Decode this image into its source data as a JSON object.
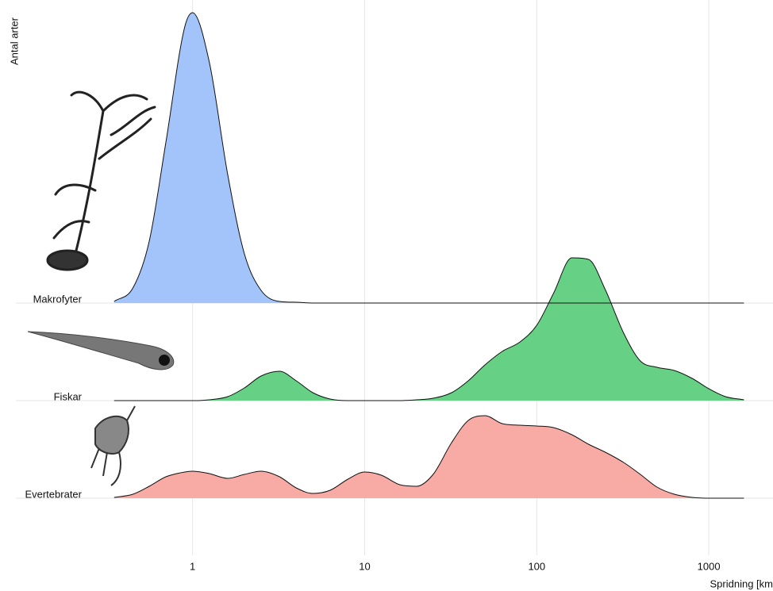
{
  "chart_data": {
    "type": "ridgeline",
    "y_label": "Antal arter",
    "x_label": "Spridning [km",
    "log_x": true,
    "grid": true,
    "xlim": [
      0.094,
      2360
    ],
    "xticks": [
      1,
      10,
      100,
      1000
    ],
    "x": [
      0.35,
      0.45,
      0.56,
      0.7,
      0.9,
      1,
      1.25,
      1.6,
      2,
      2.5,
      3.2,
      4,
      5,
      6.3,
      8,
      10,
      12.5,
      16,
      20,
      25,
      32,
      40,
      50,
      63,
      80,
      100,
      125,
      160,
      200,
      250,
      320,
      400,
      500,
      630,
      800,
      1000,
      1250,
      1600
    ],
    "series": [
      {
        "name": "Makrofyter",
        "color": "#a3c4fb",
        "values": [
          0.02,
          0.19,
          0.78,
          2.03,
          3.48,
          3.66,
          3.04,
          1.62,
          0.62,
          0.16,
          0.02,
          0.01,
          0,
          0,
          0,
          0,
          0,
          0,
          0,
          0,
          0,
          0,
          0,
          0,
          0,
          0,
          0,
          0,
          0,
          0,
          0,
          0,
          0,
          0,
          0,
          0,
          0,
          0
        ]
      },
      {
        "name": "Fiskar",
        "color": "#66d184",
        "values": [
          0,
          0,
          0,
          0,
          0,
          0,
          0.01,
          0.05,
          0.16,
          0.31,
          0.37,
          0.25,
          0.1,
          0.02,
          0,
          0,
          0,
          0,
          0.01,
          0.03,
          0.1,
          0.25,
          0.45,
          0.62,
          0.74,
          0.95,
          1.35,
          1.8,
          1.78,
          1.4,
          0.85,
          0.5,
          0.42,
          0.38,
          0.28,
          0.15,
          0.05,
          0.01
        ]
      },
      {
        "name": "Evertebrater",
        "color": "#f8aaa4",
        "values": [
          0.01,
          0.05,
          0.15,
          0.27,
          0.33,
          0.34,
          0.31,
          0.25,
          0.3,
          0.34,
          0.27,
          0.13,
          0.06,
          0.1,
          0.24,
          0.33,
          0.29,
          0.17,
          0.15,
          0.3,
          0.7,
          0.98,
          1.04,
          0.94,
          0.92,
          0.91,
          0.89,
          0.8,
          0.68,
          0.58,
          0.45,
          0.3,
          0.14,
          0.05,
          0.01,
          0,
          0,
          0
        ]
      }
    ]
  }
}
